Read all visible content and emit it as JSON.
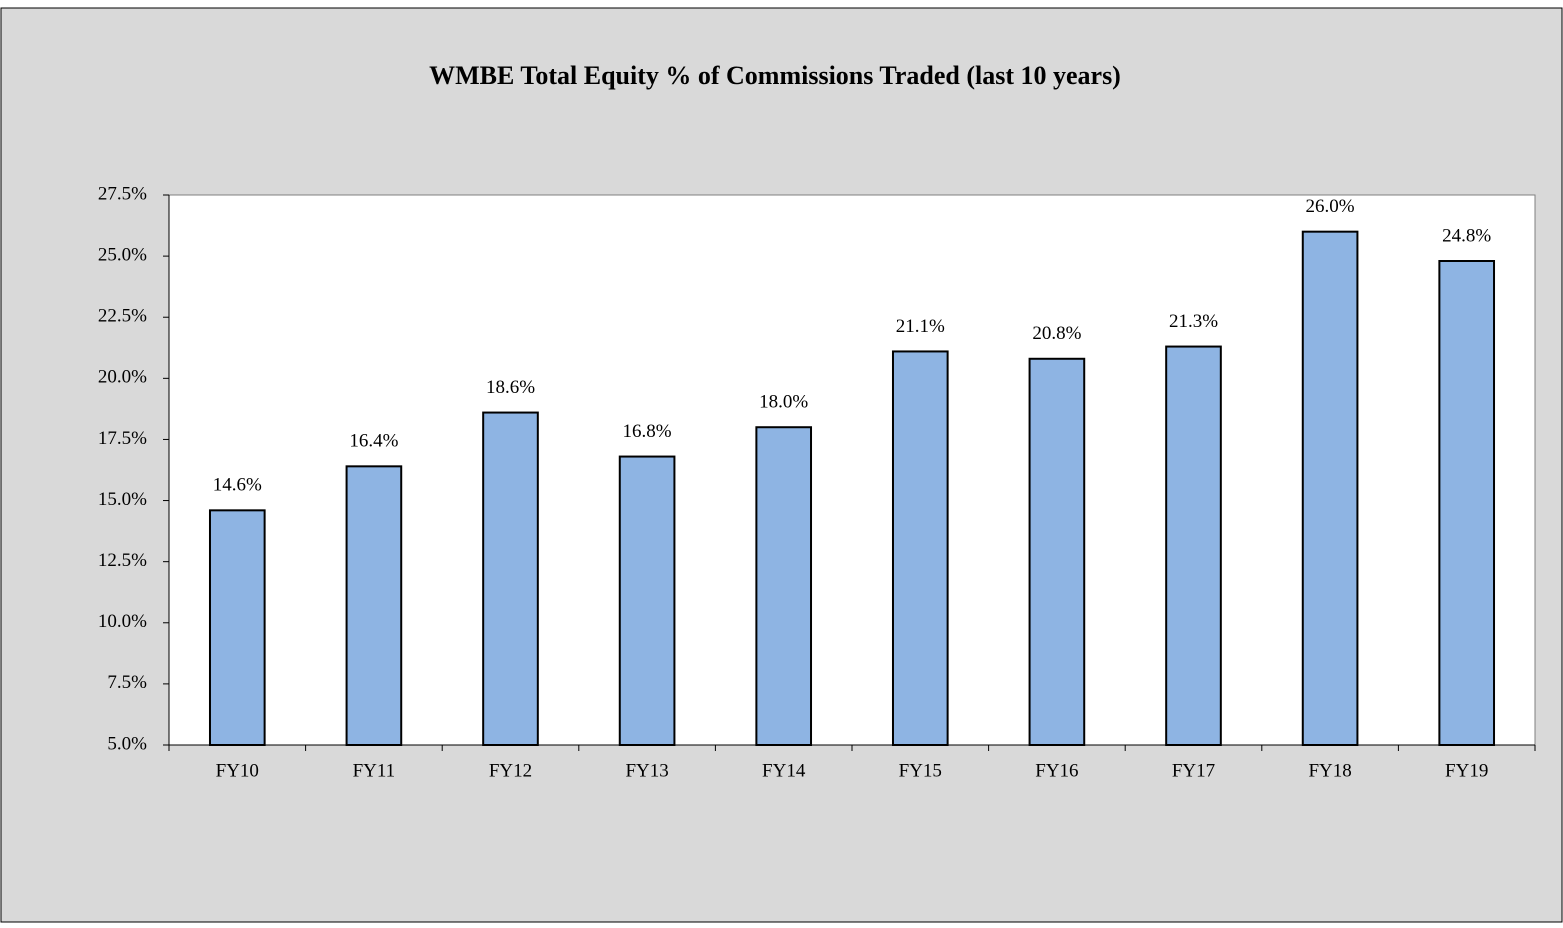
{
  "chart_data": {
    "type": "bar",
    "title": "WMBE Total Equity % of Commissions Traded (last 10 years)",
    "categories": [
      "FY10",
      "FY11",
      "FY12",
      "FY13",
      "FY14",
      "FY15",
      "FY16",
      "FY17",
      "FY18",
      "FY19"
    ],
    "values": [
      14.6,
      16.4,
      18.6,
      16.8,
      18.0,
      21.1,
      20.8,
      21.3,
      26.0,
      24.8
    ],
    "value_labels": [
      "14.6%",
      "16.4%",
      "18.6%",
      "16.8%",
      "18.0%",
      "21.1%",
      "20.8%",
      "21.3%",
      "26.0%",
      "24.8%"
    ],
    "color": "#8eb4e3",
    "ylim": [
      5,
      27.5
    ],
    "yticks": [
      {
        "value": 5,
        "label": "5.0%"
      },
      {
        "value": 7.5,
        "label": "7.5%"
      },
      {
        "value": 10,
        "label": "10.0%"
      },
      {
        "value": 12.5,
        "label": "12.5%"
      },
      {
        "value": 15,
        "label": "15.0%"
      },
      {
        "value": 17.5,
        "label": "17.5%"
      },
      {
        "value": 20,
        "label": "20.0%"
      },
      {
        "value": 22.5,
        "label": "22.5%"
      },
      {
        "value": 25,
        "label": "25.0%"
      },
      {
        "value": 27.5,
        "label": "27.5%"
      }
    ],
    "grid": false
  }
}
